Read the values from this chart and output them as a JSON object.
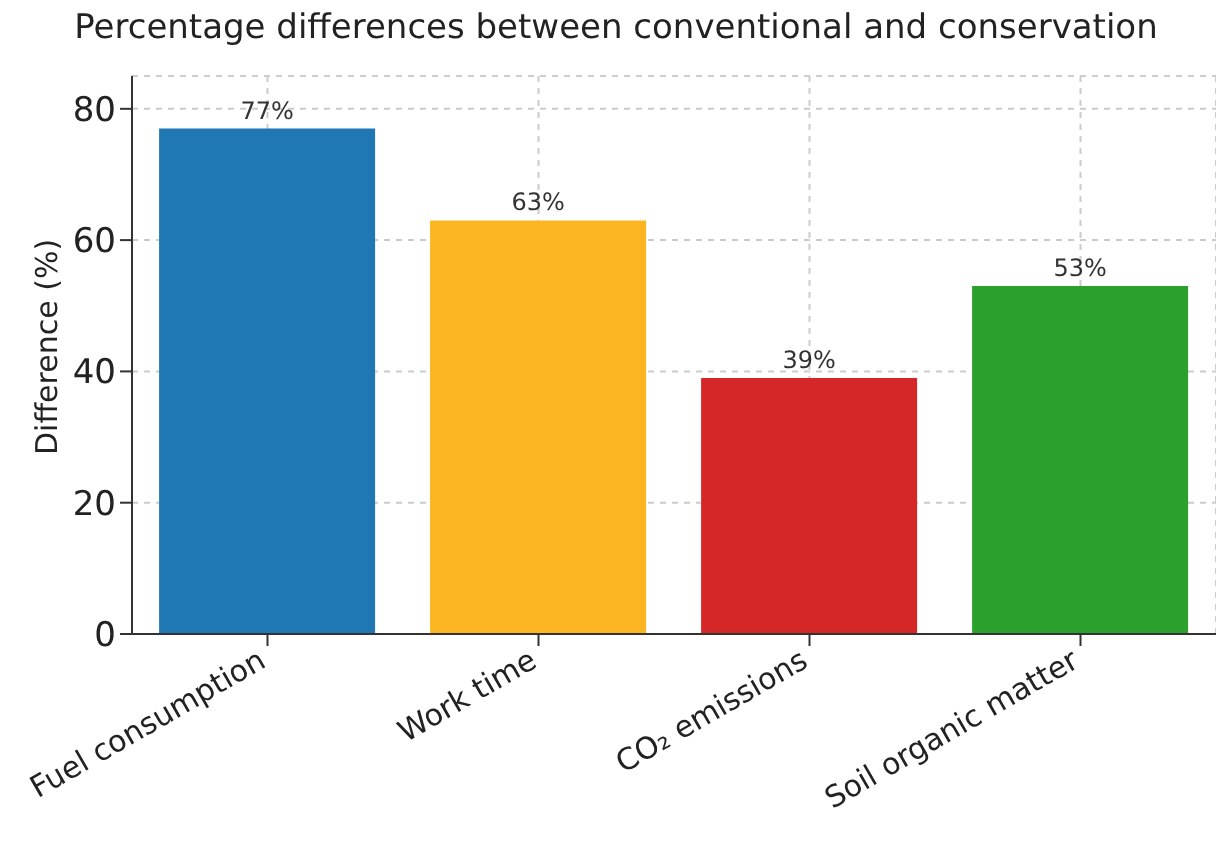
{
  "chart_data": {
    "type": "bar",
    "title": "Percentage differences between conventional and conservation",
    "ylabel": "Difference (%)",
    "categories": [
      "Fuel consumption",
      "Work time",
      "CO₂ emissions",
      "Soil organic matter"
    ],
    "values": [
      77,
      63,
      39,
      53
    ],
    "colors": [
      "#1f77b4",
      "#fbb520",
      "#d62728",
      "#2ca02c"
    ],
    "value_labels": [
      "77%",
      "63%",
      "39%",
      "53%"
    ],
    "ylim": [
      0,
      85
    ],
    "yticks": [
      0,
      20,
      40,
      60,
      80
    ],
    "grid": true
  }
}
